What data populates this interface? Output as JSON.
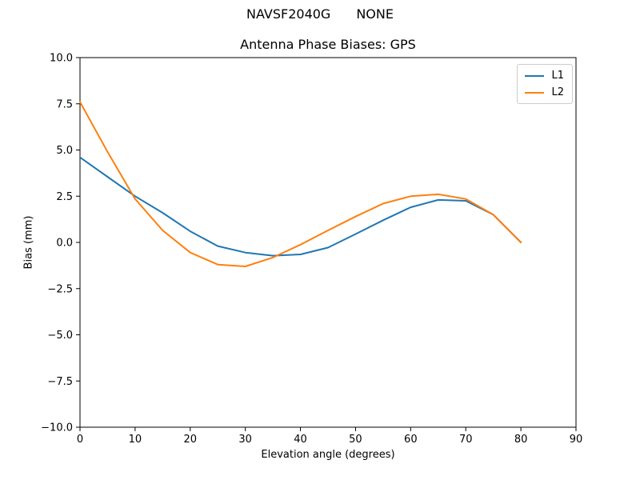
{
  "figure": {
    "background": "#ffffff"
  },
  "suptitle": {
    "left": "NAVSF2040G",
    "right": "NONE"
  },
  "chart_data": {
    "type": "line",
    "suptitle": "NAVSF2040G      NONE",
    "title": "Antenna Phase Biases: GPS",
    "xlabel": "Elevation angle (degrees)",
    "ylabel": "Bias (mm)",
    "xlim": [
      0,
      90
    ],
    "ylim": [
      -10,
      10
    ],
    "xticks": [
      0,
      10,
      20,
      30,
      40,
      50,
      60,
      70,
      80,
      90
    ],
    "xtick_labels": [
      "0",
      "10",
      "20",
      "30",
      "40",
      "50",
      "60",
      "70",
      "80",
      "90"
    ],
    "yticks": [
      10,
      7.5,
      5,
      2.5,
      0,
      -2.5,
      -5,
      -7.5,
      -10
    ],
    "ytick_labels": [
      "10.0",
      "7.5",
      "5.0",
      "2.5",
      "0.0",
      "−2.5",
      "−5.0",
      "−7.5",
      "−10.0"
    ],
    "grid": false,
    "legend": {
      "position": "upper right",
      "entries": [
        "L1",
        "L2"
      ]
    },
    "x": [
      0,
      5,
      10,
      15,
      20,
      25,
      30,
      35,
      40,
      45,
      50,
      55,
      60,
      65,
      70,
      75,
      80
    ],
    "series": [
      {
        "name": "L1",
        "color": "#1f77b4",
        "values": [
          4.6,
          3.55,
          2.5,
          1.6,
          0.6,
          -0.2,
          -0.55,
          -0.72,
          -0.65,
          -0.28,
          0.45,
          1.2,
          1.9,
          2.3,
          2.25,
          1.5,
          0.0
        ]
      },
      {
        "name": "L2",
        "color": "#ff7f0e",
        "values": [
          7.6,
          4.9,
          2.35,
          0.65,
          -0.55,
          -1.2,
          -1.3,
          -0.82,
          -0.12,
          0.65,
          1.4,
          2.1,
          2.5,
          2.6,
          2.35,
          1.5,
          0.0
        ]
      }
    ]
  }
}
